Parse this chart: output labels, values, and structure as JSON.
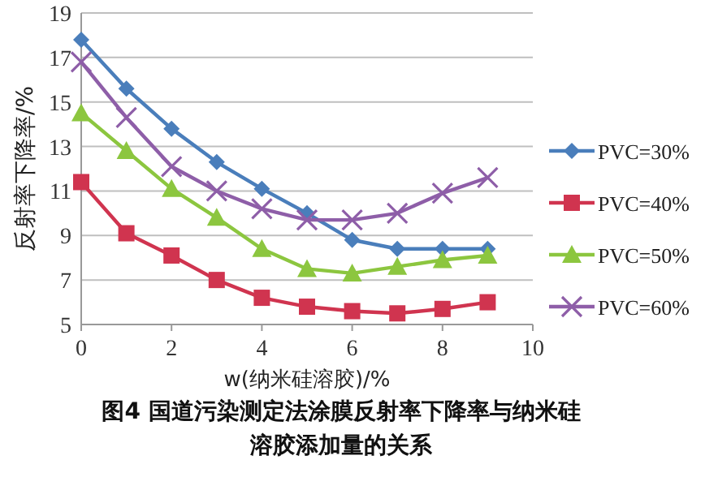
{
  "chart_data": {
    "type": "line",
    "title": "图4   国道污染测定法涂膜反射率下降率与纳米硅溶胶添加量的关系",
    "xlabel": "w(纳米硅溶胶)/%",
    "ylabel": "反射率下降率/%",
    "x": [
      0,
      1,
      2,
      3,
      4,
      5,
      6,
      7,
      8,
      9
    ],
    "xlim": [
      0,
      10
    ],
    "xticks": [
      0,
      2,
      4,
      6,
      8,
      10
    ],
    "ylim": [
      5,
      19
    ],
    "yticks": [
      5,
      7,
      9,
      11,
      13,
      15,
      17,
      19
    ],
    "grid": "y",
    "legend": "right",
    "series": [
      {
        "name": "PVC=30%",
        "color": "#4a7ebb",
        "marker": "diamond",
        "values": [
          17.8,
          15.6,
          13.8,
          12.3,
          11.1,
          10.0,
          8.8,
          8.4,
          8.4,
          8.4
        ]
      },
      {
        "name": "PVC=40%",
        "color": "#d0344f",
        "marker": "square",
        "values": [
          11.4,
          9.1,
          8.1,
          7.0,
          6.2,
          5.8,
          5.6,
          5.5,
          5.7,
          6.0
        ]
      },
      {
        "name": "PVC=50%",
        "color": "#8cc63f",
        "marker": "triangle",
        "values": [
          14.5,
          12.8,
          11.1,
          9.8,
          8.4,
          7.5,
          7.3,
          7.6,
          7.9,
          8.1
        ]
      },
      {
        "name": "PVC=60%",
        "color": "#8e5ea8",
        "marker": "cross",
        "values": [
          16.8,
          14.3,
          12.1,
          11.0,
          10.2,
          9.7,
          9.7,
          10.0,
          10.9,
          11.6
        ]
      }
    ]
  }
}
